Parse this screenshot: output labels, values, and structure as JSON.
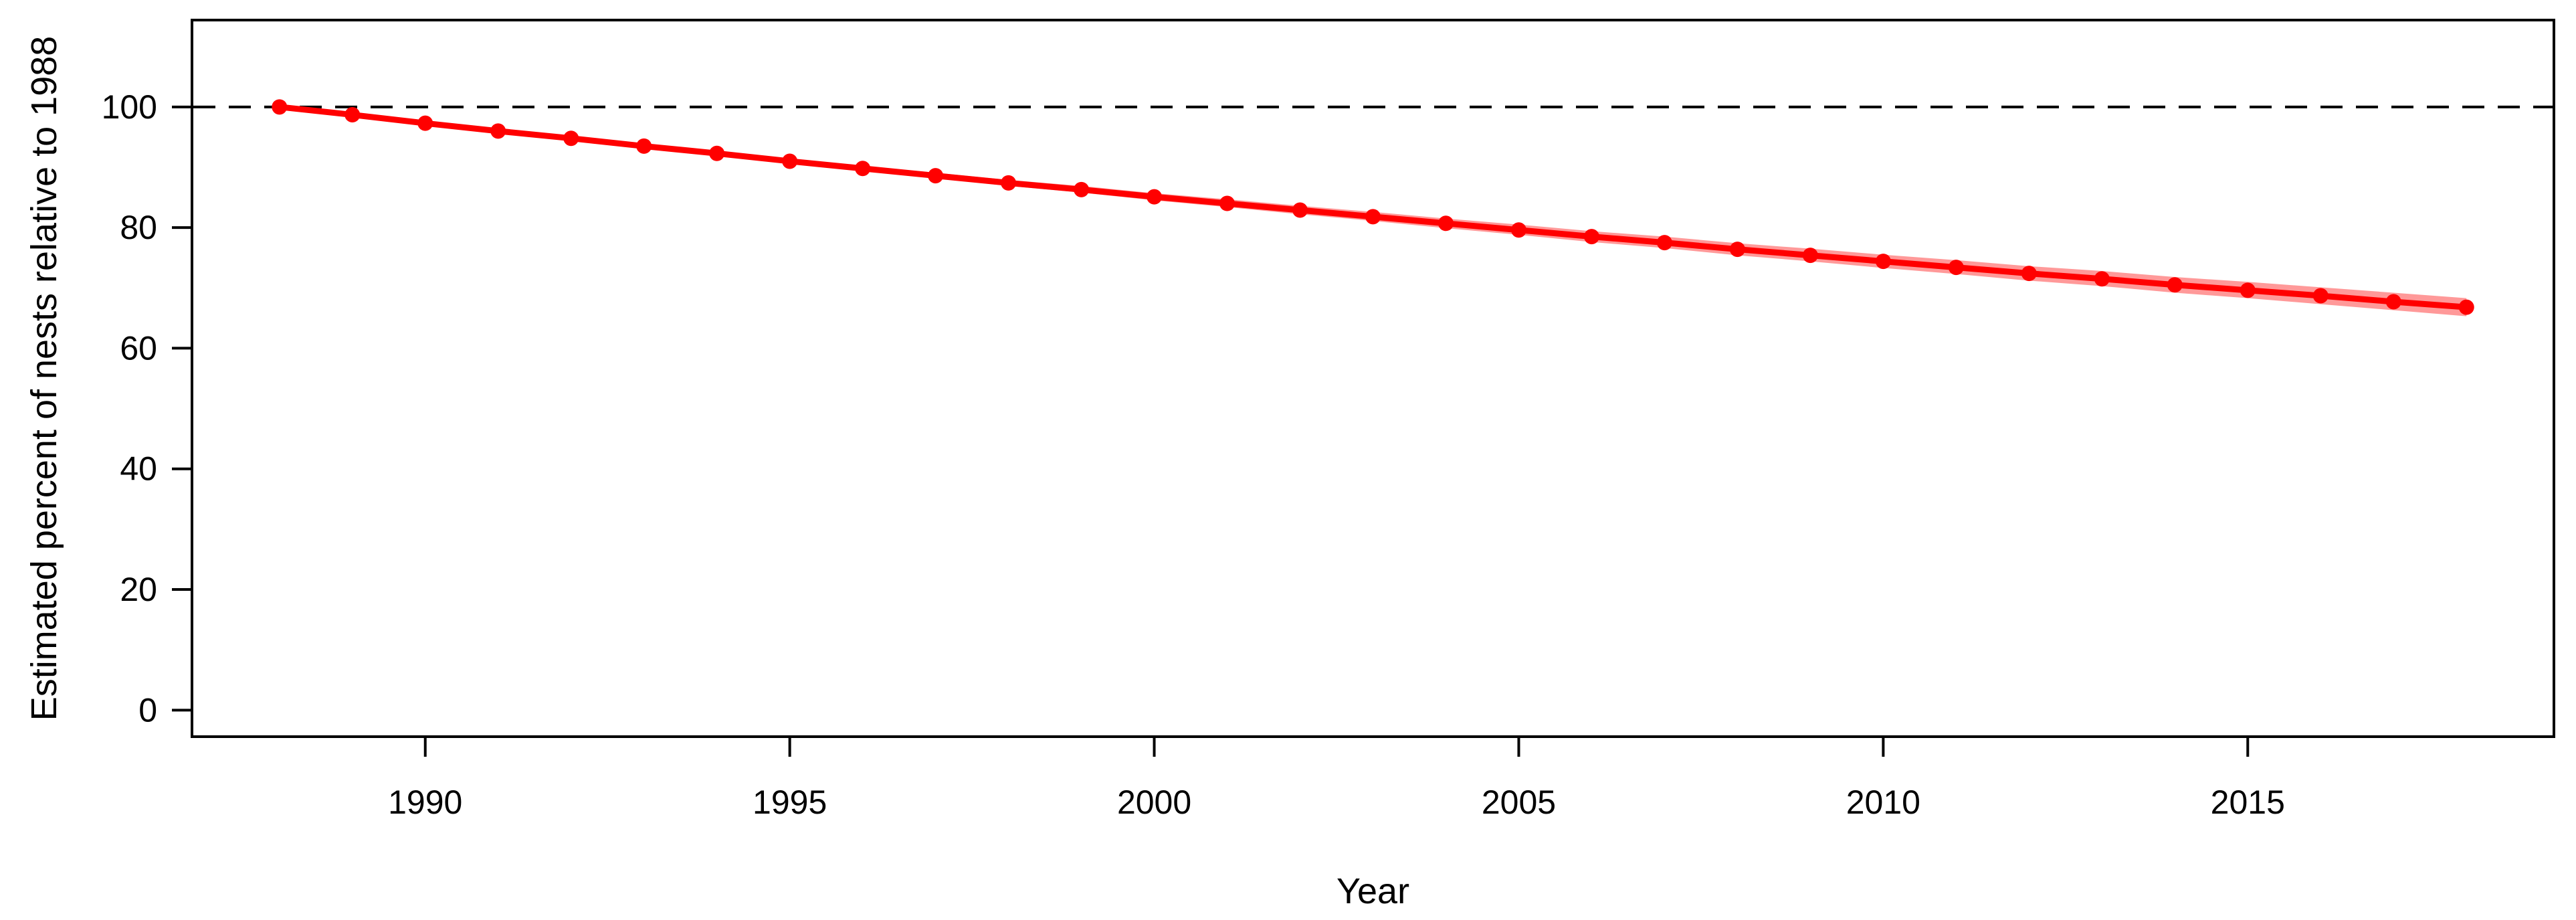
{
  "chart_data": {
    "type": "line",
    "title": "",
    "xlabel": "Year",
    "ylabel": "Estimated percent of nests relative to 1988",
    "x": [
      1988,
      1989,
      1990,
      1991,
      1992,
      1993,
      1994,
      1995,
      1996,
      1997,
      1998,
      1999,
      2000,
      2001,
      2002,
      2003,
      2004,
      2005,
      2006,
      2007,
      2008,
      2009,
      2010,
      2011,
      2012,
      2013,
      2014,
      2015,
      2016,
      2017,
      2018
    ],
    "series": [
      {
        "name": "Estimated percent of nests relative to 1988",
        "color": "#FF0000",
        "band_color": "#FF9999",
        "marker": "filled-circle",
        "values": [
          100.0,
          98.7,
          97.3,
          96.0,
          94.8,
          93.5,
          92.3,
          91.0,
          89.8,
          88.6,
          87.4,
          86.3,
          85.1,
          84.0,
          82.9,
          81.8,
          80.7,
          79.6,
          78.5,
          77.5,
          76.4,
          75.4,
          74.4,
          73.4,
          72.4,
          71.5,
          70.5,
          69.6,
          68.7,
          67.7,
          66.8
        ],
        "ci_upper": [
          100.0,
          98.8,
          97.4,
          96.2,
          95.0,
          93.8,
          92.6,
          91.4,
          90.2,
          89.1,
          87.9,
          86.9,
          85.7,
          84.7,
          83.6,
          82.6,
          81.5,
          80.5,
          79.4,
          78.5,
          77.4,
          76.5,
          75.5,
          74.6,
          73.6,
          72.8,
          71.8,
          71.0,
          70.1,
          69.2,
          68.3
        ],
        "ci_lower": [
          100.0,
          98.7,
          97.2,
          95.9,
          94.6,
          93.3,
          92.0,
          90.7,
          89.4,
          88.2,
          86.9,
          85.8,
          84.5,
          83.4,
          82.2,
          81.1,
          79.9,
          78.8,
          77.6,
          76.6,
          75.4,
          74.4,
          73.3,
          72.3,
          71.2,
          70.3,
          69.2,
          68.3,
          67.3,
          66.3,
          65.3
        ]
      }
    ],
    "x_ticks": [
      1990,
      1995,
      2000,
      2005,
      2010,
      2015
    ],
    "y_ticks": [
      0,
      20,
      40,
      60,
      80,
      100
    ],
    "xlim": [
      1988,
      2018
    ],
    "ylim": [
      0,
      110
    ],
    "x_range_drawn": [
      1986.8,
      2019.2
    ],
    "y_range_drawn": [
      -4.4,
      114.4
    ],
    "grid": false,
    "legend": "none",
    "reference_line": {
      "y": 100,
      "style": "dashed",
      "color": "#000000"
    },
    "axis_color": "#000000",
    "background": "#FFFFFF"
  }
}
